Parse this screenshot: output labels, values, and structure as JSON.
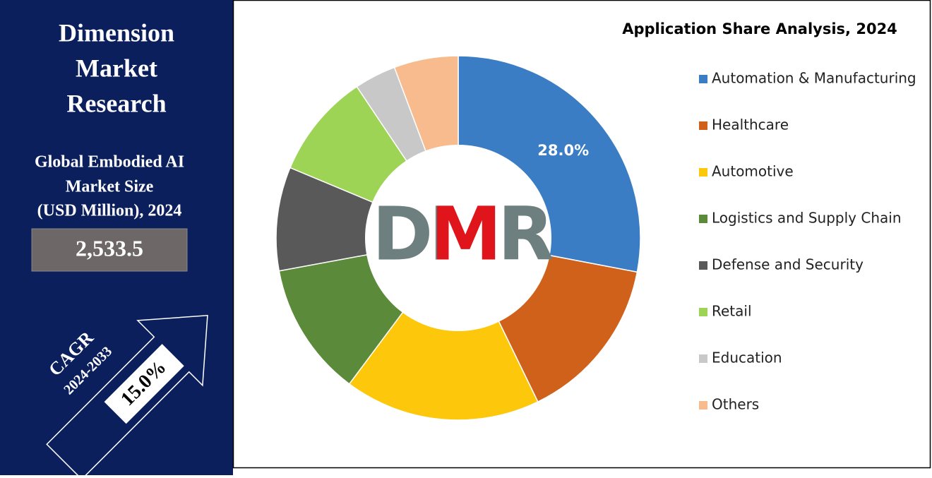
{
  "sidebar": {
    "brand_lines": [
      "Dimension",
      "Market",
      "Research"
    ],
    "subtitle_lines": [
      "Global Embodied AI",
      "Market Size",
      "(USD Million), 2024"
    ],
    "market_size": "2,533.5",
    "cagr_label": "CAGR",
    "cagr_period": "2024-2033",
    "cagr_value": "15.0%"
  },
  "logo": "DMR",
  "chart_data": {
    "type": "donut",
    "title": "Application Share Analysis, 2024",
    "categories": [
      "Automation & Manufacturing",
      "Healthcare",
      "Automotive",
      "Logistics and Supply Chain",
      "Defense and Security",
      "Retail",
      "Education",
      "Others"
    ],
    "values": [
      28,
      14.8,
      17.4,
      11.9,
      9.2,
      9.3,
      3.7,
      5.7
    ],
    "value_labels": [
      "28.0%",
      null,
      null,
      null,
      null,
      null,
      null,
      null
    ],
    "colors": [
      "#3a7dc4",
      "#d0611b",
      "#fdc70c",
      "#5b8b3a",
      "#595959",
      "#9ed455",
      "#c8c8c8",
      "#f8bb8e"
    ],
    "legend": "right"
  }
}
